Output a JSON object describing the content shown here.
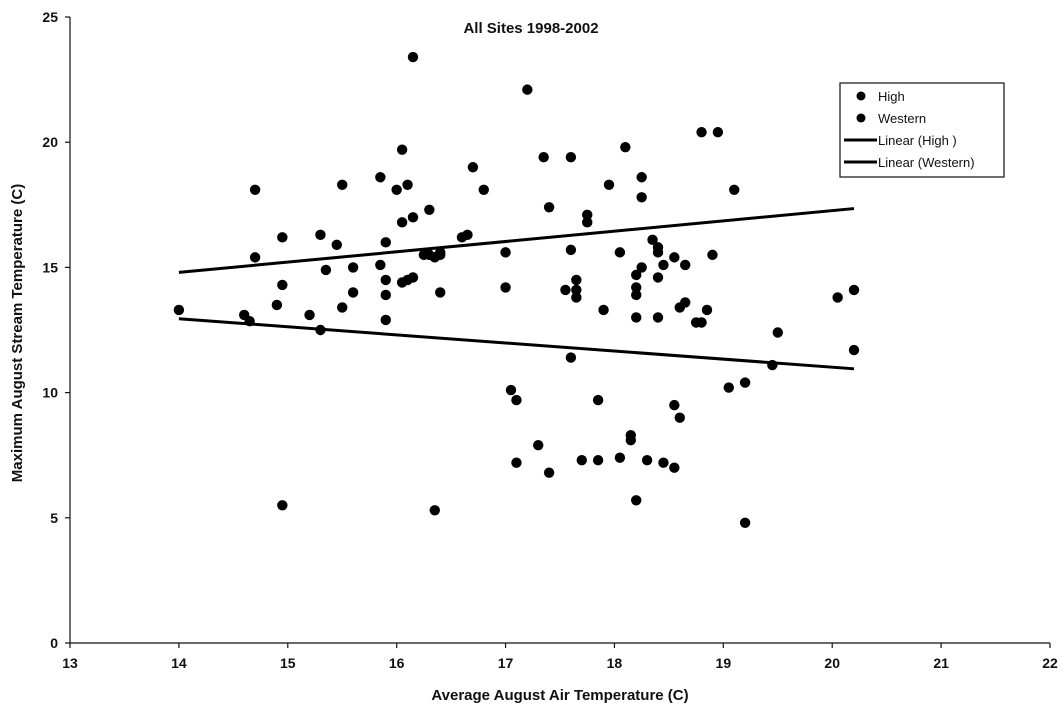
{
  "chart_data": {
    "type": "scatter",
    "title": "All Sites 1998-2002",
    "xlabel": "Average August Air Temperature (C)",
    "ylabel": "Maximum August Stream Temperature (C)",
    "xlim": [
      13,
      22
    ],
    "ylim": [
      0,
      25
    ],
    "x_ticks": [
      "13",
      "14",
      "15",
      "16",
      "17",
      "18",
      "19",
      "20",
      "21",
      "22"
    ],
    "y_ticks": [
      "0",
      "5",
      "10",
      "15",
      "20",
      "25"
    ],
    "grid": false,
    "legend_placement": "top-right",
    "series": [
      {
        "name": "High",
        "kind": "points",
        "color": "#000000",
        "points": [
          [
            14.0,
            13.3
          ],
          [
            14.7,
            15.4
          ],
          [
            14.7,
            18.1
          ],
          [
            14.9,
            13.5
          ],
          [
            14.95,
            16.2
          ],
          [
            14.95,
            14.3
          ],
          [
            15.2,
            13.1
          ],
          [
            15.3,
            16.3
          ],
          [
            15.35,
            14.9
          ],
          [
            15.45,
            15.9
          ],
          [
            15.5,
            13.4
          ],
          [
            15.5,
            18.3
          ],
          [
            15.6,
            15.0
          ],
          [
            15.6,
            14.0
          ],
          [
            15.85,
            15.1
          ],
          [
            15.85,
            18.6
          ],
          [
            15.9,
            14.5
          ],
          [
            15.9,
            16.0
          ],
          [
            15.9,
            13.9
          ],
          [
            16.0,
            18.1
          ],
          [
            16.05,
            19.7
          ],
          [
            16.05,
            16.8
          ],
          [
            16.05,
            14.4
          ],
          [
            16.1,
            18.3
          ],
          [
            16.1,
            14.5
          ],
          [
            16.15,
            17.0
          ],
          [
            16.15,
            14.6
          ],
          [
            16.15,
            23.4
          ],
          [
            16.25,
            15.5
          ],
          [
            16.3,
            15.5
          ],
          [
            16.3,
            17.3
          ],
          [
            16.35,
            15.4
          ],
          [
            16.4,
            15.5
          ],
          [
            16.4,
            15.6
          ],
          [
            16.6,
            16.2
          ],
          [
            16.65,
            16.3
          ],
          [
            16.7,
            19.0
          ],
          [
            16.8,
            18.1
          ],
          [
            17.0,
            15.6
          ],
          [
            17.0,
            14.2
          ],
          [
            17.2,
            22.1
          ],
          [
            17.35,
            19.4
          ],
          [
            17.4,
            17.4
          ],
          [
            17.55,
            14.1
          ],
          [
            17.6,
            15.7
          ],
          [
            17.6,
            19.4
          ],
          [
            17.65,
            14.1
          ],
          [
            17.65,
            14.5
          ],
          [
            17.75,
            17.1
          ],
          [
            17.75,
            16.8
          ],
          [
            17.9,
            13.3
          ],
          [
            17.95,
            18.3
          ],
          [
            18.05,
            15.6
          ],
          [
            18.1,
            19.8
          ],
          [
            18.2,
            14.7
          ],
          [
            18.2,
            14.2
          ],
          [
            18.2,
            13.9
          ],
          [
            18.2,
            13.0
          ],
          [
            18.25,
            18.6
          ],
          [
            18.25,
            15.0
          ],
          [
            18.25,
            17.8
          ],
          [
            18.35,
            16.1
          ],
          [
            18.4,
            15.8
          ],
          [
            18.4,
            15.6
          ],
          [
            18.4,
            14.6
          ],
          [
            18.4,
            13.0
          ],
          [
            18.45,
            15.1
          ],
          [
            18.55,
            15.4
          ],
          [
            18.6,
            13.4
          ],
          [
            18.65,
            15.1
          ],
          [
            18.65,
            13.6
          ],
          [
            18.75,
            12.8
          ],
          [
            18.8,
            20.4
          ],
          [
            18.8,
            12.8
          ],
          [
            18.85,
            13.3
          ],
          [
            18.9,
            15.5
          ],
          [
            18.95,
            20.4
          ],
          [
            19.1,
            18.1
          ],
          [
            19.45,
            11.1
          ],
          [
            19.5,
            12.4
          ],
          [
            20.05,
            13.8
          ],
          [
            20.2,
            14.1
          ],
          [
            20.2,
            11.7
          ],
          [
            14.65,
            12.85
          ],
          [
            14.6,
            13.1
          ],
          [
            15.3,
            12.5
          ],
          [
            15.9,
            12.9
          ],
          [
            16.4,
            14.0
          ],
          [
            17.65,
            13.8
          ]
        ]
      },
      {
        "name": "Western",
        "kind": "points",
        "color": "#000000",
        "points": [
          [
            14.95,
            5.5
          ],
          [
            16.35,
            5.3
          ],
          [
            17.05,
            10.1
          ],
          [
            17.1,
            9.7
          ],
          [
            17.1,
            7.2
          ],
          [
            17.3,
            7.9
          ],
          [
            17.4,
            6.8
          ],
          [
            17.6,
            11.4
          ],
          [
            17.7,
            7.3
          ],
          [
            17.85,
            7.3
          ],
          [
            17.85,
            9.7
          ],
          [
            18.05,
            7.4
          ],
          [
            18.15,
            8.3
          ],
          [
            18.15,
            8.1
          ],
          [
            18.2,
            5.7
          ],
          [
            18.3,
            7.3
          ],
          [
            18.45,
            7.2
          ],
          [
            18.55,
            7.0
          ],
          [
            18.55,
            9.5
          ],
          [
            18.6,
            9.0
          ],
          [
            19.05,
            10.2
          ],
          [
            19.2,
            10.4
          ],
          [
            19.2,
            4.8
          ]
        ]
      },
      {
        "name": "Linear (High )",
        "kind": "line",
        "color": "#000000",
        "points": [
          [
            14.0,
            14.8
          ],
          [
            20.2,
            17.35
          ]
        ]
      },
      {
        "name": "Linear (Western)",
        "kind": "line",
        "color": "#000000",
        "points": [
          [
            14.0,
            12.95
          ],
          [
            20.2,
            10.95
          ]
        ]
      }
    ]
  }
}
